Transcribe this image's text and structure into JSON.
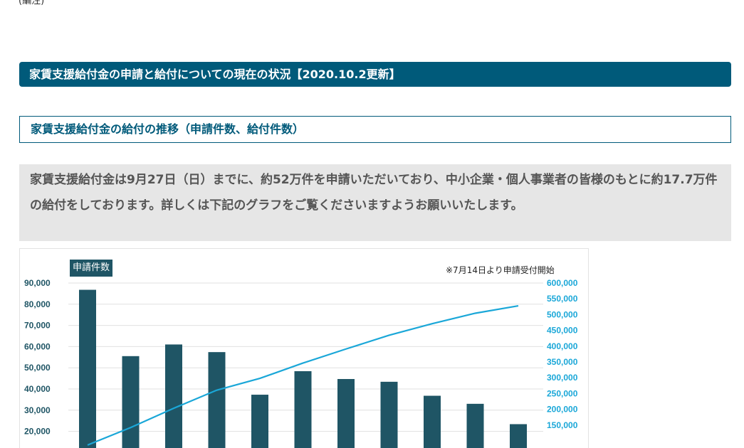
{
  "page": {
    "top_fragment": "(編注)",
    "banner_title": "家賃支援給付金の申請と給付についての現在の状況【2020.10.2更新】",
    "section_title": "家賃支援給付金の給付の推移（申請件数、給付件数）",
    "notice_text": "家賃支援給付金は9月27日（日）までに、約52万件を申請いただいており、中小企業・個人事業者の皆様のもとに約17.7万件の給付をしております。詳しくは下記のグラフをご覧くださいますようお願いいたします。"
  },
  "colors": {
    "banner_bg": "#005a7a",
    "bar": "#1f5565",
    "line": "#1aa7d8",
    "left_axis_text": "#1f5565",
    "right_axis_text": "#1aa7d8"
  },
  "chart_data": {
    "type": "bar",
    "left_axis_badge": "申請件数",
    "note": "※7月14日より申請受付開始",
    "left_ticks": [
      "90,000",
      "80,000",
      "70,000",
      "60,000",
      "50,000",
      "40,000",
      "30,000",
      "20,000"
    ],
    "right_ticks": [
      "600,000",
      "550,000",
      "500,000",
      "450,000",
      "400,000",
      "350,000",
      "300,000",
      "250,000",
      "200,000",
      "150,000"
    ],
    "ylim_left": [
      20000,
      90000
    ],
    "ylim_right": [
      150000,
      600000
    ],
    "grid": true,
    "series": [
      {
        "axis": "left",
        "kind": "bar",
        "values": [
          86800,
          55500,
          61000,
          57400,
          37300,
          48400,
          44700,
          43400,
          36800,
          33000,
          23400
        ]
      },
      {
        "axis": "right",
        "kind": "line",
        "values": [
          86800,
          142300,
          203300,
          260700,
          298000,
          346400,
          391100,
          434500,
          471300,
          504300,
          527700
        ]
      }
    ]
  }
}
